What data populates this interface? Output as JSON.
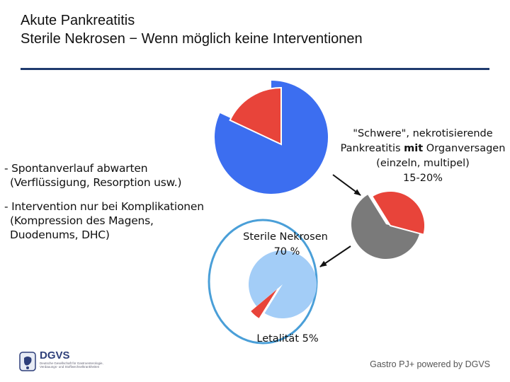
{
  "title": {
    "line1": "Akute Pankreatitis",
    "line2": "Sterile Nekrosen − Wenn möglich keine Interventionen"
  },
  "bullets": [
    {
      "line1": "- Spontanverlauf abwarten",
      "line2": "(Verflüssigung, Resorption usw.)"
    },
    {
      "line1": "- Intervention nur bei Komplikationen",
      "line2": "(Kompression des Magens,",
      "line3": "Duodenums, DHC)"
    }
  ],
  "labels": {
    "severe_line1": "\"Schwere\", nekrotisierende",
    "severe_line2_a": "Pankreatitis ",
    "severe_line2_b": "mit",
    "severe_line2_c": " Organversagen",
    "severe_line3": "(einzeln, multipel)",
    "severe_line4": "15-20%",
    "sterile_line1": "Sterile Nekrosen",
    "sterile_line2": "70 %",
    "mortality": "Letalität 5%"
  },
  "footer": {
    "logo": "DGVS",
    "logo_sub": "Deutsche Gesellschaft für Gastroenterologie, Verdauungs- und Stoffwechselkrankheiten",
    "credit": "Gastro PJ+ powered by DGVS"
  },
  "colors": {
    "blue": "#3c6ef0",
    "red": "#e8443a",
    "grey": "#7a7a7a",
    "light_blue": "#a3cdf7",
    "circle": "#4a9fd8",
    "rule": "#1f3a6e"
  },
  "chart_data": [
    {
      "type": "pie",
      "series": [
        {
          "values": [
            82,
            18
          ]
        }
      ],
      "colors": [
        "#3c6ef0",
        "#e8443a"
      ],
      "exploded_slice": 1,
      "note_label": "\"Schwere\", nekrotisierende Pankreatitis mit Organversagen (einzeln, multipel) 15-20%"
    },
    {
      "type": "pie",
      "series": [
        {
          "values": [
            62,
            38
          ]
        }
      ],
      "colors": [
        "#7a7a7a",
        "#e8443a"
      ],
      "exploded_slice": 1
    },
    {
      "type": "pie",
      "series": [
        {
          "values": [
            95,
            5
          ]
        }
      ],
      "colors": [
        "#a3cdf7",
        "#e8443a"
      ],
      "exploded_slice": 1,
      "labels": [
        "Sterile Nekrosen 70 %",
        "Letalität 5%"
      ]
    }
  ]
}
